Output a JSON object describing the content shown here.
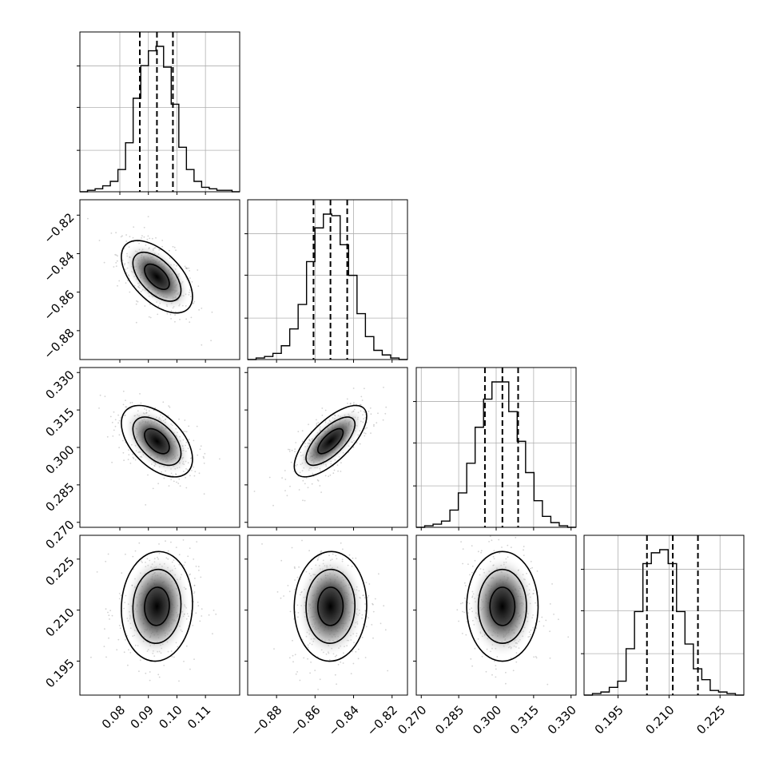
{
  "chart_data": {
    "type": "corner",
    "params": [
      {
        "range": [
          0.066,
          0.122
        ],
        "ticks": [
          0.08,
          0.09,
          0.1,
          0.11
        ],
        "tick_labels": [
          "0.08",
          "0.09",
          "0.10",
          "0.11"
        ],
        "quantiles": [
          0.087,
          0.093,
          0.0986
        ],
        "hist_edges": [
          0.066,
          0.122
        ],
        "hist_values": [
          0,
          1,
          2,
          4,
          7,
          15,
          33,
          63,
          85,
          95,
          98,
          84,
          59,
          30,
          15,
          7,
          3,
          2,
          1,
          1,
          0
        ]
      },
      {
        "range": [
          -0.895,
          -0.812
        ],
        "ticks": [
          -0.88,
          -0.86,
          -0.84,
          -0.82
        ],
        "tick_labels": [
          "−0.88",
          "−0.86",
          "−0.84",
          "−0.82"
        ],
        "quantiles": [
          -0.8608,
          -0.852,
          -0.8433
        ],
        "hist_edges": [
          -0.895,
          -0.812
        ],
        "hist_values": [
          0,
          1,
          2,
          4,
          9,
          20,
          36,
          64,
          86,
          95,
          94,
          75,
          55,
          30,
          15,
          6,
          3,
          1,
          0
        ]
      },
      {
        "range": [
          0.268,
          0.332
        ],
        "ticks": [
          0.27,
          0.285,
          0.3,
          0.315,
          0.33
        ],
        "tick_labels": [
          "0.270",
          "0.285",
          "0.300",
          "0.315",
          "0.330"
        ],
        "quantiles": [
          0.2955,
          0.3025,
          0.3088
        ],
        "hist_edges": [
          0.268,
          0.332
        ],
        "hist_values": [
          0,
          1,
          2,
          4,
          11,
          22,
          41,
          64,
          82,
          93,
          93,
          74,
          55,
          35,
          17,
          7,
          3,
          1,
          0
        ]
      },
      {
        "range": [
          0.185,
          0.232
        ],
        "ticks": [
          0.195,
          0.21,
          0.225
        ],
        "tick_labels": [
          "0.195",
          "0.210",
          "0.225"
        ],
        "quantiles": [
          0.2035,
          0.2111,
          0.2185
        ],
        "hist_edges": [
          0.185,
          0.232
        ],
        "hist_values": [
          0,
          1,
          2,
          5,
          9,
          30,
          54,
          85,
          92,
          94,
          85,
          54,
          33,
          17,
          10,
          3,
          2,
          1,
          0
        ]
      }
    ],
    "pairs": [
      {
        "i": 1,
        "j": 0,
        "corr": -0.55
      },
      {
        "i": 2,
        "j": 0,
        "corr": -0.5
      },
      {
        "i": 2,
        "j": 1,
        "corr": 0.7
      },
      {
        "i": 3,
        "j": 0,
        "corr": 0.05
      },
      {
        "i": 3,
        "j": 1,
        "corr": 0.02
      },
      {
        "i": 3,
        "j": 2,
        "corr": 0.0
      }
    ],
    "grid": true,
    "colors": {
      "line": "#000000",
      "grid": "#b0b0b0",
      "points": "#7f7f7f"
    }
  }
}
